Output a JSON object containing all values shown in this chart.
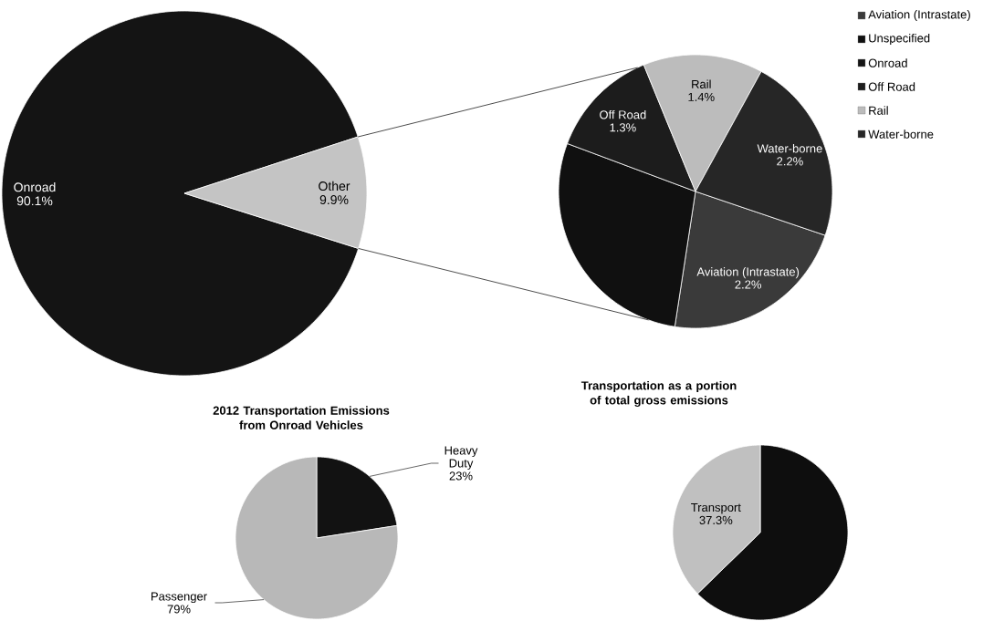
{
  "chart_data": [
    {
      "type": "pie",
      "categories": [
        "Onroad",
        "Other"
      ],
      "values": [
        90.1,
        9.9
      ],
      "colors": [
        "#141414",
        "#c4c4c4"
      ],
      "value_labels": [
        "90.1%",
        "9.9%"
      ]
    },
    {
      "type": "pie",
      "categories": [
        "Aviation (Intrastate)",
        "Unspecified",
        "Off Road",
        "Rail",
        "Water-borne"
      ],
      "values": [
        2.2,
        2.8,
        1.3,
        1.4,
        2.2
      ],
      "colors": [
        "#3a3a3a",
        "#101010",
        "#1c1c1c",
        "#bcbcbc",
        "#262626"
      ],
      "value_labels": [
        "2.2%",
        null,
        "1.3%",
        "1.4%",
        "2.2%"
      ],
      "legend": "right"
    },
    {
      "type": "pie",
      "title": "2012 Transportation Emissions from Onroad Vehicles",
      "categories": [
        "Heavy Duty",
        "Passenger"
      ],
      "values": [
        23,
        79
      ],
      "colors": [
        "#121212",
        "#b8b8b8"
      ],
      "value_labels": [
        "23%",
        "79%"
      ]
    },
    {
      "type": "pie",
      "title": "Transportation as a portion of total gross emissions",
      "categories": [
        null,
        "Transport"
      ],
      "values": [
        62.7,
        37.3
      ],
      "colors": [
        "#0e0e0e",
        "#c0c0c0"
      ],
      "value_labels": [
        null,
        "37.3%"
      ]
    }
  ]
}
